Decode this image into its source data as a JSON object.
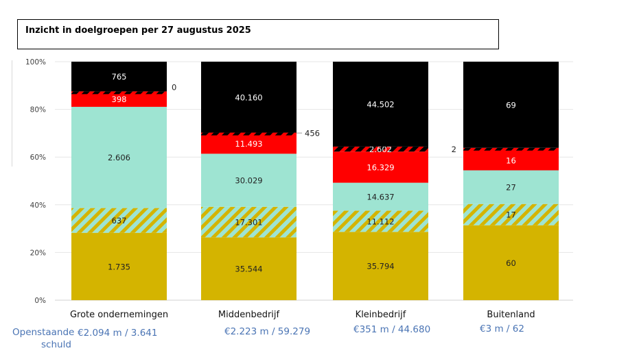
{
  "title": "Inzicht in doelgroepen per 27 augustus 2025",
  "footer": {
    "label_line1": "Openstaande",
    "label_line2": "schuld",
    "amounts": [
      "€2.094 m / 3.641",
      "€2.223 m / 59.279",
      "€351 m / 44.680",
      "€3 m / 62"
    ]
  },
  "colors": {
    "gold": "#d4b400",
    "teal": "#9ee4d2",
    "red": "#ff0000",
    "black": "#000000",
    "grid": "#e6e6e6",
    "axis_text": "#404040"
  },
  "chart_data": {
    "type": "bar",
    "stacked": "percent",
    "title": "Inzicht in doelgroepen per 27 augustus 2025",
    "xlabel": "",
    "ylabel": "",
    "ylim": [
      0,
      100
    ],
    "yticks": [
      "0%",
      "20%",
      "40%",
      "60%",
      "80%",
      "100%"
    ],
    "grid": true,
    "categories": [
      "Grote ondernemingen",
      "Middenbedrijf",
      "Kleinbedrijf",
      "Buitenland"
    ],
    "series": [
      {
        "name": "segment-1-gold",
        "color": "#d4b400",
        "pattern": "solid",
        "label_color": "#222222",
        "values": [
          1735,
          35544,
          35794,
          60
        ],
        "labels": [
          "1.735",
          "35.544",
          "35.794",
          "60"
        ]
      },
      {
        "name": "segment-2-gold-teal-hatched",
        "color": "#d4b400",
        "pattern": "hatch-teal",
        "label_color": "#222222",
        "values": [
          637,
          17301,
          11112,
          17
        ],
        "labels": [
          "637",
          "17.301",
          "11.112",
          "17"
        ]
      },
      {
        "name": "segment-3-teal",
        "color": "#9ee4d2",
        "pattern": "solid",
        "label_color": "#222222",
        "values": [
          2606,
          30029,
          14637,
          27
        ],
        "labels": [
          "2.606",
          "30.029",
          "14.637",
          "27"
        ]
      },
      {
        "name": "segment-4-red",
        "color": "#ff0000",
        "pattern": "solid",
        "label_color": "#ffffff",
        "values": [
          398,
          11493,
          16329,
          16
        ],
        "labels": [
          "398",
          "11.493",
          "16.329",
          "16"
        ]
      },
      {
        "name": "segment-5-red-black-hatched",
        "color": "#ff0000",
        "pattern": "hatch-black",
        "label_color": "#ffffff",
        "values": [
          0,
          456,
          2602,
          2
        ],
        "labels": [
          "0",
          "456",
          "2.602",
          "2"
        ],
        "label_position": [
          "outside",
          "outside",
          "inside",
          "outside-left"
        ]
      },
      {
        "name": "segment-6-black",
        "color": "#000000",
        "pattern": "solid",
        "label_color": "#ffffff",
        "values": [
          765,
          40160,
          44502,
          69
        ],
        "labels": [
          "765",
          "40.160",
          "44.502",
          "69"
        ]
      }
    ]
  }
}
